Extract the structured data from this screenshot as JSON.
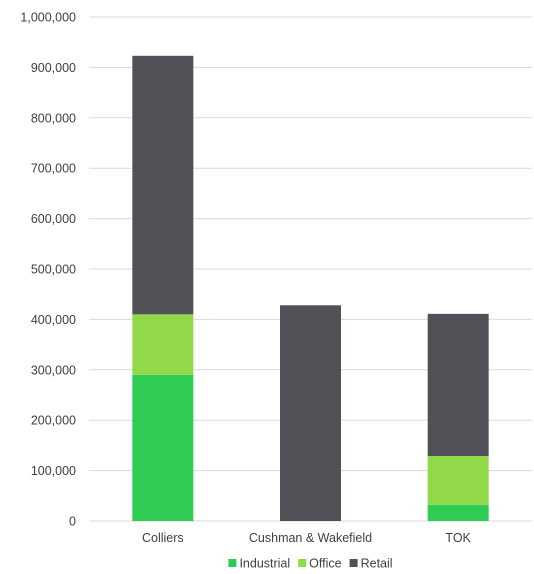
{
  "chart_data": {
    "type": "bar",
    "stacked": true,
    "categories": [
      "Colliers",
      "Cushman & Wakefield",
      "TOK"
    ],
    "series": [
      {
        "name": "Industrial",
        "values": [
          290000,
          0,
          32000
        ],
        "color": "#2ecc52"
      },
      {
        "name": "Office",
        "values": [
          120000,
          0,
          97000
        ],
        "color": "#92d94a"
      },
      {
        "name": "Retail",
        "values": [
          513000,
          428000,
          282000
        ],
        "color": "#505257"
      }
    ],
    "ylim": [
      0,
      1000000
    ],
    "yticks": [
      0,
      100000,
      200000,
      300000,
      400000,
      500000,
      600000,
      700000,
      800000,
      900000,
      1000000
    ],
    "ytick_labels": [
      "0",
      "100,000",
      "200,000",
      "300,000",
      "400,000",
      "500,000",
      "600,000",
      "700,000",
      "800,000",
      "900,000",
      "1,000,000"
    ],
    "grid": true,
    "legend_position": "bottom",
    "gridline_color": "#d9d9d9"
  }
}
